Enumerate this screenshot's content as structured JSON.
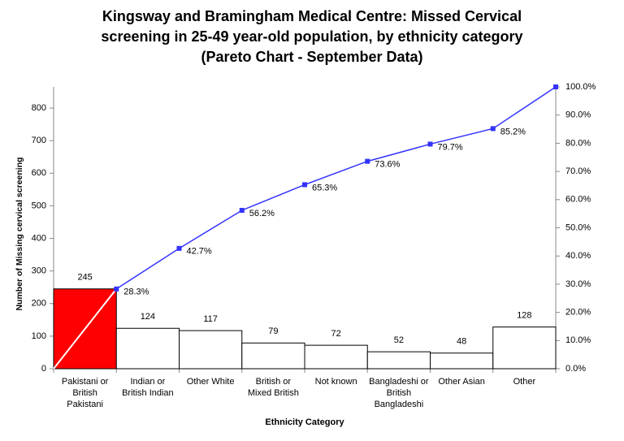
{
  "chart_data": {
    "type": "pareto",
    "title": "Kingsway and Bramingham Medical Centre: Missed Cervical\nscreening in 25-49 year-old population, by ethnicity category\n(Pareto Chart - September Data)",
    "y_label": "Number of Missing cervical screening",
    "x_label": "Ethnicity Category",
    "categories": [
      "Pakistani or\nBritish\nPakistani",
      "Indian or\nBritish Indian",
      "Other White",
      "British or\nMixed British",
      "Not known",
      "Bangladeshi or\nBritish\nBangladeshi",
      "Other Asian",
      "Other"
    ],
    "series": [
      {
        "type": "bar",
        "values": [
          245,
          124,
          117,
          79,
          72,
          52,
          48,
          128
        ],
        "colors": [
          "#ff0000",
          "#ffffff",
          "#ffffff",
          "#ffffff",
          "#ffffff",
          "#ffffff",
          "#ffffff",
          "#ffffff"
        ]
      },
      {
        "type": "line",
        "axis": "y2",
        "color": "#3333ff",
        "values": [
          28.3,
          42.7,
          56.2,
          65.3,
          73.6,
          79.7,
          85.2,
          100
        ],
        "value_labels": [
          "28.3%",
          "42.7%",
          "56.2%",
          "65.3%",
          "73.6%",
          "79.7%",
          "85.2%",
          null
        ]
      }
    ],
    "ylim": [
      0,
      865
    ],
    "yticks": [
      0,
      100,
      200,
      300,
      400,
      500,
      600,
      700,
      800
    ],
    "y2lim": [
      0,
      100
    ],
    "y2ticks": [
      {
        "value": 0,
        "label": "0.0%"
      },
      {
        "value": 10,
        "label": "10.0%"
      },
      {
        "value": 20,
        "label": "20.0%"
      },
      {
        "value": 30,
        "label": "30.0%"
      },
      {
        "value": 40,
        "label": "40.0%"
      },
      {
        "value": 50,
        "label": "50.0%"
      },
      {
        "value": 60,
        "label": "60.0%"
      },
      {
        "value": 70,
        "label": "70.0%"
      },
      {
        "value": 80,
        "label": "80.0%"
      },
      {
        "value": 90,
        "label": "90.0%"
      },
      {
        "value": 100,
        "label": "100.0%"
      }
    ],
    "grid": false
  }
}
